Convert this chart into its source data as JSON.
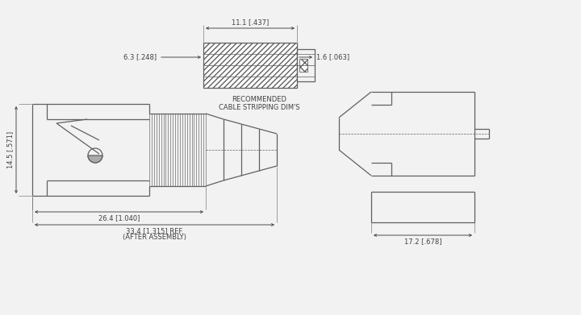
{
  "bg_color": "#f2f2f2",
  "line_color": "#606060",
  "text_color": "#404040",
  "dim_fs": 6.0,
  "lbl_fs": 6.0,
  "dim_11_1": "11.1 [.437]",
  "dim_6_3": "6.3 [.248]",
  "dim_1_6": "1.6 [.063]",
  "dim_14_5": "14.5 [.571]",
  "dim_26_4": "26.4 [1.040]",
  "dim_33_4": "33.4 [1.315] REF.",
  "dim_after": "(AFTER ASSEMBLY)",
  "dim_17_2": "17.2 [.678]",
  "cable_lbl": "RECOMMENDED\nCABLE STRIPPING DIM'S"
}
